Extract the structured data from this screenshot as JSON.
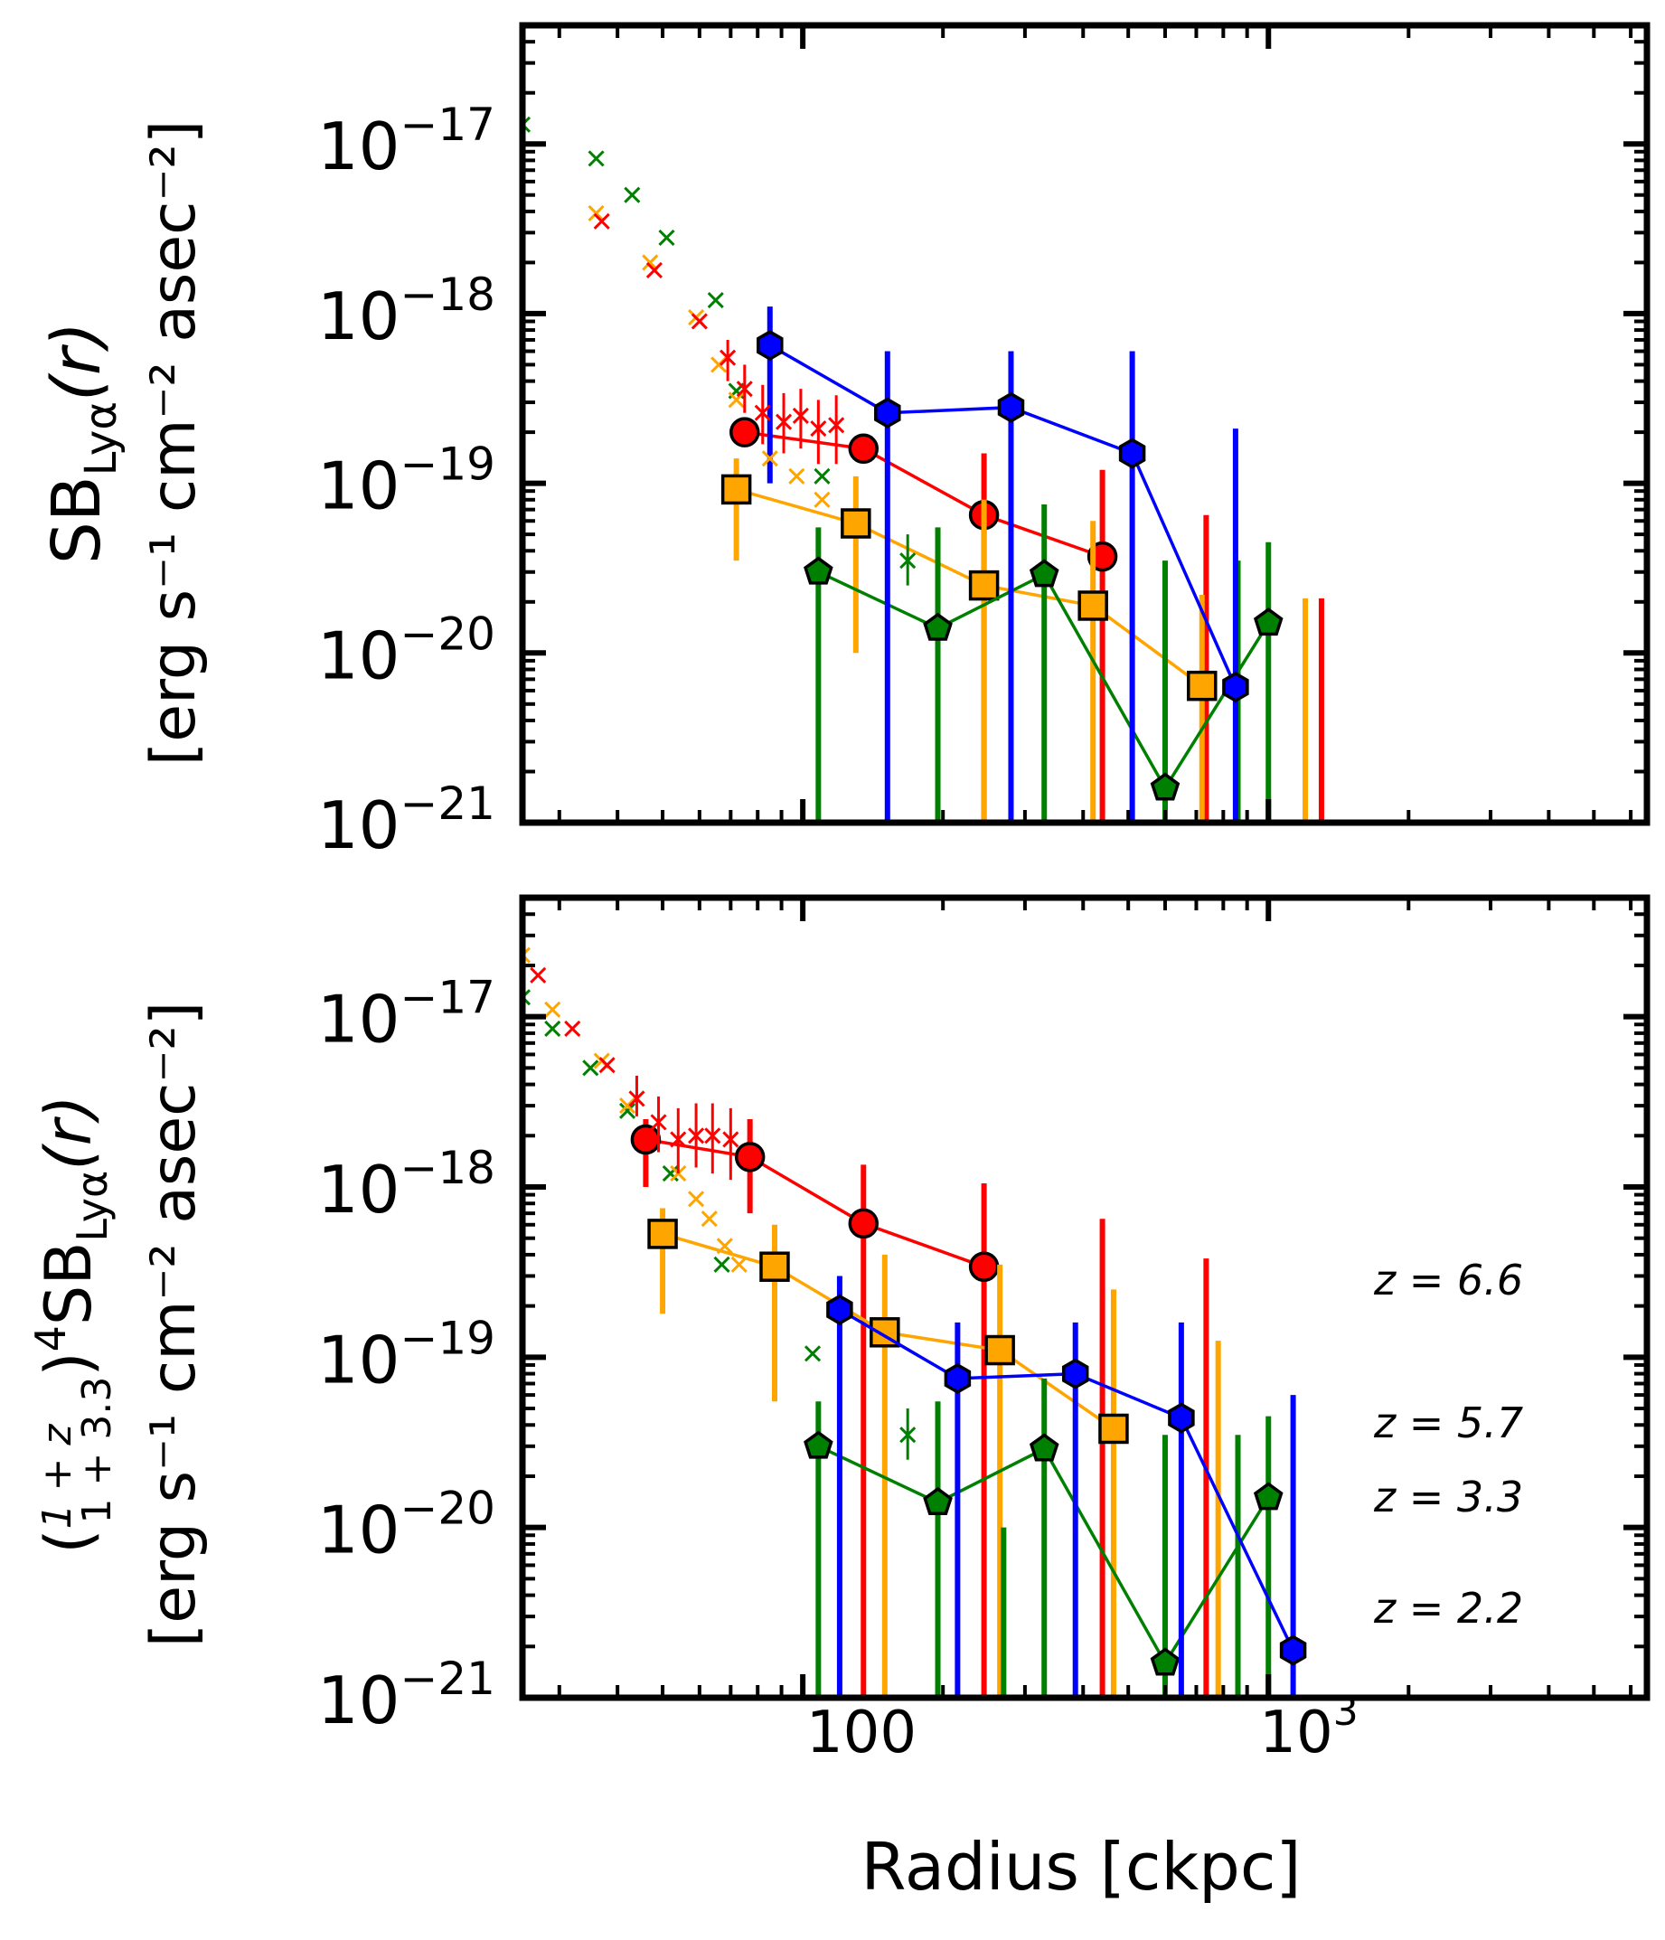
{
  "figure": {
    "xlabel": "Radius [ckpc]",
    "x_tick_labels": [
      {
        "value": 100,
        "label": "100"
      },
      {
        "value": 1000,
        "label": "10",
        "sup": "3"
      }
    ],
    "y_tick_labels": [
      {
        "value": 1e-17,
        "base": "10",
        "exp": "−17"
      },
      {
        "value": 1e-18,
        "base": "10",
        "exp": "−18"
      },
      {
        "value": 1e-19,
        "base": "10",
        "exp": "−19"
      },
      {
        "value": 1e-20,
        "base": "10",
        "exp": "−20"
      },
      {
        "value": 1e-21,
        "base": "10",
        "exp": "−21"
      }
    ],
    "top_ylabel_line1": "SB",
    "top_ylabel_sub": "Lyα",
    "top_ylabel_tail": "(r)",
    "bottom_ylabel_prefix": "(",
    "bottom_ylabel_num": "1 + z",
    "bottom_ylabel_den": "1 + 3.3",
    "bottom_ylabel_suffix": ")",
    "bottom_ylabel_power": "4",
    "bottom_ylabel_sb": "SB",
    "bottom_ylabel_sub": "Lyα",
    "bottom_ylabel_tail": "(r)",
    "unit_label": "[erg s⁻¹ cm⁻² asec⁻²]",
    "legend": [
      {
        "label": "z = 6.6",
        "color": "#ff0000"
      },
      {
        "label": "z = 5.7",
        "color": "#ffa500"
      },
      {
        "label": "z = 3.3",
        "color": "#008000"
      },
      {
        "label": "z = 2.2",
        "color": "#0000ff"
      }
    ]
  },
  "chart_data": [
    {
      "type": "scatter",
      "panel": "top",
      "xscale": "log",
      "yscale": "log",
      "xlim": [
        25,
        6500
      ],
      "ylim": [
        1e-21,
        5e-17
      ],
      "xlabel": "",
      "ylabel": "SB_Lyα(r) [erg s^-1 cm^-2 asec^-2]",
      "series": [
        {
          "name": "z = 6.6 stack",
          "color": "#ff0000",
          "marker": "circle",
          "points": [
            {
              "x": 75,
              "y": 2e-19,
              "lo": null,
              "hi": null
            },
            {
              "x": 135,
              "y": 1.6e-19,
              "lo": null,
              "hi": null
            },
            {
              "x": 245,
              "y": 6.5e-20,
              "lo": 1e-21,
              "hi": 1.5e-19
            },
            {
              "x": 440,
              "y": 3.7e-20,
              "lo": 1e-21,
              "hi": 1.2e-19
            }
          ],
          "extra_bars": [
            {
              "x": 735,
              "lo": 1e-21,
              "hi": 6.5e-20
            },
            {
              "x": 1300,
              "lo": 1e-21,
              "hi": 2.1e-20
            }
          ]
        },
        {
          "name": "z = 5.7 stack",
          "color": "#ffa500",
          "marker": "square",
          "points": [
            {
              "x": 72,
              "y": 9.2e-20,
              "lo": 3.5e-20,
              "hi": 1.4e-19
            },
            {
              "x": 130,
              "y": 5.8e-20,
              "lo": 1e-20,
              "hi": 1.1e-19
            },
            {
              "x": 245,
              "y": 2.5e-20,
              "lo": 1e-21,
              "hi": 8e-20
            },
            {
              "x": 420,
              "y": 1.9e-20,
              "lo": 1e-21,
              "hi": 6e-20
            },
            {
              "x": 720,
              "y": 6.4e-21,
              "lo": 1e-21,
              "hi": 2.2e-20
            }
          ],
          "extra_bars": [
            {
              "x": 1200,
              "lo": 1e-21,
              "hi": 2.1e-20
            }
          ]
        },
        {
          "name": "z = 3.3 stack",
          "color": "#008000",
          "marker": "pentagon",
          "points": [
            {
              "x": 108,
              "y": 3e-20,
              "lo": 1e-21,
              "hi": 5.5e-20
            },
            {
              "x": 195,
              "y": 1.4e-20,
              "lo": 1e-21,
              "hi": 5.5e-20
            },
            {
              "x": 330,
              "y": 2.9e-20,
              "lo": 1e-21,
              "hi": 7.5e-20
            },
            {
              "x": 600,
              "y": 1.6e-21,
              "lo": 1e-21,
              "hi": 3.5e-20
            },
            {
              "x": 1000,
              "y": 1.5e-20,
              "lo": 1e-21,
              "hi": 4.5e-20
            }
          ],
          "extra_bars": [
            {
              "x": 860,
              "lo": 1e-21,
              "hi": 3.5e-20
            }
          ]
        },
        {
          "name": "z = 2.2 stack",
          "color": "#0000ff",
          "marker": "hexagon",
          "points": [
            {
              "x": 85,
              "y": 6.5e-19,
              "lo": 1e-19,
              "hi": 1.1e-18
            },
            {
              "x": 152,
              "y": 2.6e-19,
              "lo": 1e-21,
              "hi": 6e-19
            },
            {
              "x": 280,
              "y": 2.8e-19,
              "lo": 1e-21,
              "hi": 6e-19
            },
            {
              "x": 510,
              "y": 1.5e-19,
              "lo": 1e-21,
              "hi": 6e-19
            },
            {
              "x": 850,
              "y": 6.3e-21,
              "lo": 1e-21,
              "hi": 2.1e-19
            }
          ]
        },
        {
          "name": "z = 3.3 inner",
          "color": "#008000",
          "marker": "x",
          "points": [
            {
              "x": 25,
              "y": 1.3e-17
            },
            {
              "x": 36,
              "y": 8.2e-18
            },
            {
              "x": 43,
              "y": 5e-18
            },
            {
              "x": 51,
              "y": 2.8e-18
            },
            {
              "x": 65,
              "y": 1.2e-18
            },
            {
              "x": 72,
              "y": 3.5e-19
            },
            {
              "x": 110,
              "y": 1.1e-19
            },
            {
              "x": 168,
              "y": 3.5e-20,
              "lo": 2.5e-20,
              "hi": 5e-20
            }
          ]
        },
        {
          "name": "z = 5.7 inner",
          "color": "#ffa500",
          "marker": "x",
          "points": [
            {
              "x": 36,
              "y": 3.9e-18
            },
            {
              "x": 47,
              "y": 2e-18
            },
            {
              "x": 59,
              "y": 9.5e-19
            },
            {
              "x": 66,
              "y": 5e-19
            },
            {
              "x": 72,
              "y": 3.1e-19
            },
            {
              "x": 85,
              "y": 1.4e-19
            },
            {
              "x": 97,
              "y": 1.1e-19
            },
            {
              "x": 110,
              "y": 8e-20
            }
          ]
        },
        {
          "name": "z = 6.6 inner",
          "color": "#ff0000",
          "marker": "x",
          "points": [
            {
              "x": 37,
              "y": 3.5e-18
            },
            {
              "x": 48,
              "y": 1.8e-18
            },
            {
              "x": 60,
              "y": 9e-19
            },
            {
              "x": 69,
              "y": 5.5e-19,
              "lo": 4e-19,
              "hi": 7e-19
            },
            {
              "x": 75,
              "y": 3.6e-19,
              "lo": 2.6e-19,
              "hi": 5e-19
            },
            {
              "x": 82,
              "y": 2.6e-19,
              "lo": 1.7e-19,
              "hi": 3.8e-19
            },
            {
              "x": 91,
              "y": 2.3e-19,
              "lo": 1.5e-19,
              "hi": 3.4e-19
            },
            {
              "x": 99,
              "y": 2.5e-19,
              "lo": 1.6e-19,
              "hi": 3.6e-19
            },
            {
              "x": 108,
              "y": 2.1e-19,
              "lo": 1.3e-19,
              "hi": 3.1e-19
            },
            {
              "x": 118,
              "y": 2.2e-19,
              "lo": 1.3e-19,
              "hi": 3.3e-19
            }
          ]
        }
      ]
    },
    {
      "type": "scatter",
      "panel": "bottom",
      "xscale": "log",
      "yscale": "log",
      "xlim": [
        25,
        6500
      ],
      "ylim": [
        1e-21,
        5e-17
      ],
      "xlabel": "Radius [ckpc]",
      "ylabel": "((1+z)/(1+3.3))^4 SB_Lyα(r) [erg s^-1 cm^-2 asec^-2]",
      "series": [
        {
          "name": "z = 6.6 stack",
          "color": "#ff0000",
          "marker": "circle",
          "points": [
            {
              "x": 46,
              "y": 1.9e-18,
              "lo": 1e-18,
              "hi": 2.5e-18
            },
            {
              "x": 77,
              "y": 1.5e-18,
              "lo": 7e-19,
              "hi": 2.5e-18
            },
            {
              "x": 135,
              "y": 6.1e-19,
              "lo": 1e-21,
              "hi": 1.35e-18
            },
            {
              "x": 245,
              "y": 3.4e-19,
              "lo": 1e-21,
              "hi": 1.05e-18
            },
            {
              "x": 440,
              "y": null,
              "lo": 1e-21,
              "hi": 6.5e-19
            },
            {
              "x": 735,
              "y": null,
              "lo": 1e-21,
              "hi": 3.8e-19
            }
          ]
        },
        {
          "name": "z = 5.7 stack",
          "color": "#ffa500",
          "marker": "square",
          "points": [
            {
              "x": 50,
              "y": 5.3e-19,
              "lo": 1.8e-19,
              "hi": 7.5e-19
            },
            {
              "x": 87,
              "y": 3.4e-19,
              "lo": 5.5e-20,
              "hi": 6e-19
            },
            {
              "x": 150,
              "y": 1.4e-19,
              "lo": 1e-21,
              "hi": 4e-19
            },
            {
              "x": 265,
              "y": 1.1e-19,
              "lo": 1e-21,
              "hi": 3.5e-19
            },
            {
              "x": 465,
              "y": 3.8e-20,
              "lo": 1e-21,
              "hi": 2.5e-19
            },
            {
              "x": 780,
              "y": null,
              "lo": 1e-21,
              "hi": 1.25e-19
            }
          ]
        },
        {
          "name": "z = 3.3 stack",
          "color": "#008000",
          "marker": "pentagon",
          "points": [
            {
              "x": 108,
              "y": 3e-20,
              "lo": 1e-21,
              "hi": 5.5e-20
            },
            {
              "x": 195,
              "y": 1.4e-20,
              "lo": 1e-21,
              "hi": 5.5e-20
            },
            {
              "x": 330,
              "y": 2.9e-20,
              "lo": 1e-21,
              "hi": 7.5e-20
            },
            {
              "x": 600,
              "y": 1.6e-21,
              "lo": 1e-21,
              "hi": 3.5e-20
            },
            {
              "x": 1000,
              "y": 1.5e-20,
              "lo": 1e-21,
              "hi": 4.5e-20
            },
            {
              "x": 860,
              "y": null,
              "lo": 1e-21,
              "hi": 3.5e-20
            },
            {
              "x": 270,
              "y": null,
              "lo": 1e-21,
              "hi": 1e-20
            }
          ]
        },
        {
          "name": "z = 2.2 stack",
          "color": "#0000ff",
          "marker": "hexagon",
          "points": [
            {
              "x": 120,
              "y": 1.9e-19,
              "lo": 1e-21,
              "hi": 3e-19
            },
            {
              "x": 215,
              "y": 7.5e-20,
              "lo": 1e-21,
              "hi": 1.6e-19
            },
            {
              "x": 385,
              "y": 8e-20,
              "lo": 1e-21,
              "hi": 1.6e-19
            },
            {
              "x": 650,
              "y": 4.4e-20,
              "lo": 1e-21,
              "hi": 1.6e-19
            },
            {
              "x": 1130,
              "y": 1.9e-21,
              "lo": 1e-21,
              "hi": 6e-20
            }
          ]
        },
        {
          "name": "z = 3.3 inner",
          "color": "#008000",
          "marker": "x",
          "points": [
            {
              "x": 25,
              "y": 1.3e-17
            },
            {
              "x": 29,
              "y": 8.5e-18
            },
            {
              "x": 35,
              "y": 5e-18
            },
            {
              "x": 42,
              "y": 2.8e-18
            },
            {
              "x": 52,
              "y": 1.2e-18
            },
            {
              "x": 67,
              "y": 3.5e-19
            },
            {
              "x": 105,
              "y": 1.05e-19
            },
            {
              "x": 168,
              "y": 3.5e-20,
              "lo": 2.5e-20,
              "hi": 5e-20
            }
          ]
        },
        {
          "name": "z = 5.7 inner",
          "color": "#ffa500",
          "marker": "x",
          "points": [
            {
              "x": 25,
              "y": 2.3e-17
            },
            {
              "x": 29,
              "y": 1.1e-17
            },
            {
              "x": 37,
              "y": 5.5e-18
            },
            {
              "x": 42,
              "y": 3e-18
            },
            {
              "x": 54,
              "y": 1.2e-18
            },
            {
              "x": 59,
              "y": 8.5e-19
            },
            {
              "x": 63,
              "y": 6.5e-19
            },
            {
              "x": 68,
              "y": 4.5e-19
            },
            {
              "x": 73,
              "y": 3.5e-19
            }
          ]
        },
        {
          "name": "z = 6.6 inner",
          "color": "#ff0000",
          "marker": "x",
          "points": [
            {
              "x": 27,
              "y": 1.75e-17
            },
            {
              "x": 32,
              "y": 8.5e-18
            },
            {
              "x": 38,
              "y": 5.2e-18
            },
            {
              "x": 44,
              "y": 3.3e-18,
              "lo": 2.6e-18,
              "hi": 4.5e-18
            },
            {
              "x": 49,
              "y": 2.4e-18,
              "lo": 1.6e-18,
              "hi": 3.4e-18
            },
            {
              "x": 54,
              "y": 1.9e-18,
              "lo": 1.2e-18,
              "hi": 2.9e-18
            },
            {
              "x": 59,
              "y": 2e-18,
              "lo": 1.3e-18,
              "hi": 3.1e-18
            },
            {
              "x": 64,
              "y": 2e-18,
              "lo": 1.2e-18,
              "hi": 3.1e-18
            },
            {
              "x": 70,
              "y": 1.9e-18,
              "lo": 1.1e-18,
              "hi": 2.9e-18
            }
          ]
        }
      ]
    }
  ]
}
